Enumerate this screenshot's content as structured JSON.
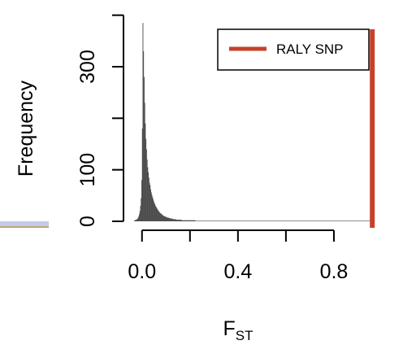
{
  "chart_data": {
    "type": "bar",
    "ylabel": "Frequency",
    "xlabel_main": "F",
    "xlabel_sub": "ST",
    "xlim": [
      -0.05,
      1.0
    ],
    "ylim": [
      0,
      390
    ],
    "x_ticks": [
      0.0,
      0.2,
      0.4,
      0.6,
      0.8
    ],
    "x_tick_labels": [
      "0.0",
      "",
      "0.4",
      "",
      "0.8"
    ],
    "y_ticks": [
      0,
      100,
      200,
      300,
      400
    ],
    "y_tick_labels": [
      "0",
      "100",
      "",
      "300",
      ""
    ],
    "bin_width": 0.0025,
    "bins_x": [
      -0.0325,
      -0.03,
      -0.0275,
      -0.025,
      -0.0225,
      -0.02,
      -0.0175,
      -0.015,
      -0.0125,
      -0.01,
      -0.0075,
      -0.005,
      -0.0025,
      0.0,
      0.0025,
      0.005,
      0.0075,
      0.01,
      0.0125,
      0.015,
      0.0175,
      0.02,
      0.0225,
      0.025,
      0.0275,
      0.03,
      0.0325,
      0.035,
      0.0375,
      0.04,
      0.0425,
      0.045,
      0.0475,
      0.05,
      0.0525,
      0.055,
      0.0575,
      0.06,
      0.0625,
      0.065,
      0.0675,
      0.07,
      0.0725,
      0.075,
      0.0775,
      0.08,
      0.0825,
      0.085,
      0.0875,
      0.09,
      0.0925,
      0.095,
      0.0975,
      0.1,
      0.1025,
      0.105,
      0.1075,
      0.11,
      0.1125,
      0.115,
      0.1175,
      0.12,
      0.1225,
      0.125,
      0.1275,
      0.13,
      0.1325,
      0.135,
      0.1375,
      0.14,
      0.1425,
      0.145,
      0.1475,
      0.15,
      0.1525,
      0.155,
      0.1575,
      0.16,
      0.1625,
      0.165,
      0.1675,
      0.17,
      0.1725,
      0.175,
      0.1775,
      0.18,
      0.1825,
      0.185,
      0.1875,
      0.19,
      0.1925,
      0.195,
      0.1975,
      0.2,
      0.2025,
      0.205,
      0.2075,
      0.21,
      0.2125,
      0.215,
      0.2175,
      0.22,
      0.2225,
      0.225,
      0.2275,
      0.23,
      0.2325,
      0.235,
      0.2375,
      0.24,
      0.2425,
      0.245,
      0.2475,
      0.25,
      0.2525,
      0.255,
      0.2575,
      0.26,
      0.2625,
      0.265,
      0.2675,
      0.27,
      0.2725,
      0.275,
      0.2775,
      0.28,
      0.2825,
      0.285,
      0.2875,
      0.29,
      0.2925,
      0.295,
      0.2975,
      0.3,
      0.3025,
      0.305,
      0.3075,
      0.31,
      0.3125,
      0.315,
      0.3175,
      0.32,
      0.3225,
      0.325,
      0.3275,
      0.33,
      0.3325,
      0.335,
      0.3375,
      0.34,
      0.3425,
      0.345,
      0.3475,
      0.35,
      0.3525,
      0.355,
      0.3575,
      0.36,
      0.3625,
      0.365,
      0.3675,
      0.37,
      0.3725,
      0.375,
      0.3775,
      0.38,
      0.3825,
      0.385,
      0.3875,
      0.39,
      0.3925,
      0.395,
      0.3975,
      0.4,
      0.4025,
      0.405,
      0.4075,
      0.41,
      0.4125,
      0.415,
      0.4175,
      0.42,
      0.4225,
      0.425,
      0.4275,
      0.43,
      0.4325,
      0.435,
      0.4375,
      0.44,
      0.4425,
      0.445,
      0.4475,
      0.45,
      0.4525,
      0.455,
      0.4575,
      0.46,
      0.4625,
      0.465,
      0.4675,
      0.47,
      0.4725,
      0.475,
      0.4775,
      0.48,
      0.4825,
      0.485,
      0.4875,
      0.49,
      0.4925,
      0.495,
      0.4975,
      0.5,
      0.5025,
      0.505,
      0.5075,
      0.51,
      0.5125,
      0.515,
      0.5175,
      0.52,
      0.5225,
      0.525,
      0.5275,
      0.53,
      0.5325,
      0.535,
      0.5375,
      0.54,
      0.5425,
      0.545,
      0.5475,
      0.55,
      0.5525,
      0.555,
      0.5575,
      0.56,
      0.5625,
      0.565,
      0.5675,
      0.57,
      0.5725,
      0.575,
      0.5775,
      0.58,
      0.5825,
      0.585,
      0.5875,
      0.59,
      0.5925,
      0.595,
      0.5975,
      0.6,
      0.6025,
      0.605,
      0.6075,
      0.61,
      0.6125,
      0.615,
      0.6175,
      0.62,
      0.6225,
      0.625,
      0.6275,
      0.63,
      0.6325,
      0.635,
      0.6375,
      0.64,
      0.6425,
      0.645,
      0.6475,
      0.65,
      0.6525,
      0.655,
      0.6575,
      0.66,
      0.6625,
      0.665,
      0.6675,
      0.67,
      0.6725,
      0.675,
      0.6775,
      0.68,
      0.6825,
      0.685,
      0.6875,
      0.69,
      0.6925,
      0.695,
      0.6975,
      0.7,
      0.7025,
      0.705,
      0.7075,
      0.71,
      0.7125,
      0.715,
      0.7175,
      0.72,
      0.7225,
      0.725,
      0.7275,
      0.73,
      0.7325,
      0.735,
      0.7375,
      0.74,
      0.7425,
      0.745,
      0.7475,
      0.75,
      0.7525,
      0.755,
      0.7575,
      0.76,
      0.7625,
      0.765,
      0.7675,
      0.77,
      0.7725,
      0.775,
      0.7775,
      0.78,
      0.7825,
      0.785,
      0.7875,
      0.79,
      0.7925,
      0.795,
      0.7975,
      0.8,
      0.8025,
      0.805,
      0.8075,
      0.81,
      0.8125,
      0.815,
      0.8175,
      0.82,
      0.8225,
      0.825,
      0.8275,
      0.83,
      0.8325,
      0.835,
      0.8375,
      0.84,
      0.8425,
      0.845,
      0.8475,
      0.85,
      0.8525,
      0.855,
      0.8575,
      0.86,
      0.8625,
      0.865,
      0.8675,
      0.87,
      0.8725,
      0.875,
      0.8775,
      0.88,
      0.8825,
      0.885,
      0.8875,
      0.89,
      0.8925,
      0.895,
      0.8975,
      0.9,
      0.9025,
      0.905,
      0.9075,
      0.91,
      0.9125,
      0.915,
      0.9175,
      0.92,
      0.9225,
      0.925,
      0.9275,
      0.93,
      0.9325,
      0.935,
      0.9375,
      0.94,
      0.9425,
      0.945,
      0.9475,
      0.95,
      0.9525,
      0.955
    ],
    "frequency": [
      2,
      2,
      3,
      3,
      4,
      5,
      7,
      10,
      14,
      20,
      30,
      45,
      80,
      180,
      385,
      330,
      280,
      230,
      190,
      160,
      140,
      120,
      105,
      95,
      85,
      75,
      70,
      62,
      56,
      51,
      47,
      43,
      39,
      36,
      33,
      30,
      28,
      26,
      24,
      22,
      20,
      19,
      17,
      16,
      15,
      14,
      13,
      12,
      11,
      10,
      10,
      9,
      9,
      8,
      8,
      7,
      7,
      7,
      6,
      6,
      6,
      5,
      5,
      5,
      5,
      4,
      4,
      4,
      4,
      4,
      3,
      3,
      3,
      3,
      3,
      3,
      3,
      3,
      3,
      2,
      2,
      2,
      2,
      2,
      2,
      2,
      2,
      2,
      2,
      2,
      2,
      2,
      2,
      2,
      2,
      2,
      2,
      2,
      2,
      2,
      2,
      2,
      1,
      1,
      1,
      1,
      1,
      1,
      1,
      1,
      1,
      1,
      1,
      1,
      1,
      1,
      1,
      1,
      1,
      1,
      1,
      1,
      1,
      1,
      1,
      1,
      1,
      1,
      1,
      1,
      1,
      1,
      1,
      1,
      1,
      1,
      1,
      1,
      1,
      1,
      1,
      1,
      1,
      1,
      1,
      1,
      1,
      1,
      1,
      1,
      1,
      1,
      1,
      1,
      1,
      1,
      1,
      1,
      1,
      1,
      1,
      1,
      1,
      1,
      1,
      1,
      1,
      1,
      1,
      1,
      1,
      1,
      1,
      1,
      1,
      1,
      1,
      1,
      1,
      1,
      1,
      1,
      1,
      1,
      1,
      1,
      1,
      1,
      1,
      1,
      1,
      1,
      1,
      1,
      1,
      1,
      1,
      1,
      1,
      1,
      1,
      1,
      1,
      1,
      1,
      1,
      1,
      1,
      1,
      1,
      1,
      1,
      1,
      1,
      1,
      1,
      1,
      1,
      1,
      1,
      1,
      1,
      1,
      1,
      1,
      1,
      1,
      1,
      1,
      1,
      1,
      1,
      1,
      1,
      1,
      1,
      1,
      1,
      1,
      1,
      1,
      1,
      1,
      1,
      1,
      1,
      1,
      1,
      1,
      1,
      1,
      1,
      1,
      1,
      1,
      1,
      1,
      1,
      1,
      1,
      1,
      1,
      1,
      1,
      1,
      1,
      1,
      1,
      1,
      1,
      1,
      1,
      1,
      1,
      1,
      1,
      1,
      1,
      1,
      1,
      1,
      1,
      1,
      1,
      1,
      1,
      1,
      1,
      1,
      1,
      1,
      1,
      1,
      1,
      1,
      1,
      1,
      1,
      1,
      1,
      1,
      1,
      1,
      1,
      1,
      1,
      1,
      1,
      1,
      1,
      1,
      1,
      1,
      1,
      1,
      1,
      1,
      1,
      1,
      1,
      1,
      1,
      1,
      1,
      1,
      1,
      1,
      1,
      1,
      1,
      1,
      1,
      1,
      1,
      1,
      1,
      1,
      1,
      1,
      1,
      1,
      1,
      1,
      1,
      1,
      1,
      1,
      1,
      1,
      1,
      1,
      1,
      1,
      1,
      1,
      1,
      1,
      1,
      1,
      1,
      1,
      1,
      1,
      1,
      1,
      1,
      1,
      1,
      1,
      1,
      1,
      1,
      1,
      1,
      1,
      1,
      1,
      1,
      1,
      1,
      1,
      1,
      1,
      1,
      1,
      1,
      1,
      1,
      1,
      1,
      1,
      1,
      1,
      1,
      1,
      1,
      1,
      1,
      1,
      1,
      1,
      1,
      1,
      1,
      1,
      1,
      1,
      1,
      1,
      1,
      1,
      1
    ],
    "marker_line": {
      "label": "RALY SNP",
      "x": 0.96,
      "color": "#c8402a"
    },
    "bar_color": "#4a4a4a",
    "legend_position": "top-right",
    "grid": false
  }
}
